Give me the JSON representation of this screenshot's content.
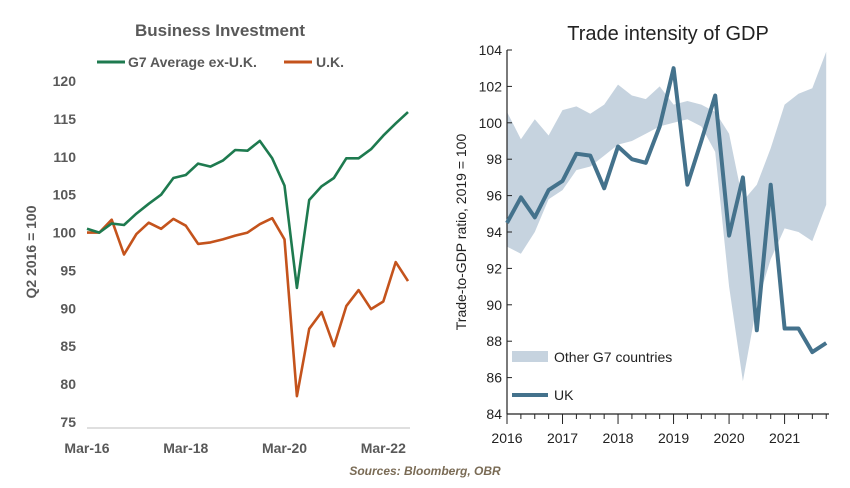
{
  "chart_data": [
    {
      "type": "line",
      "title": "Business Investment",
      "ylabel": "Q2 2016 = 100",
      "xlabel": "",
      "ylim": [
        75,
        120
      ],
      "yticks": [
        75,
        80,
        85,
        90,
        95,
        100,
        105,
        110,
        115,
        120
      ],
      "xticks": [
        "Mar-16",
        "Mar-18",
        "Mar-20",
        "Mar-22"
      ],
      "series": [
        {
          "name": "G7 Average ex-U.K.",
          "color": "#1e7a4f",
          "values": [
            100.5,
            100.0,
            101.2,
            101.0,
            102.5,
            103.8,
            105.0,
            107.2,
            107.6,
            109.1,
            108.7,
            109.5,
            110.9,
            110.8,
            112.1,
            109.8,
            106.2,
            92.7,
            104.3,
            106.1,
            107.2,
            109.8,
            109.8,
            111.0,
            112.8,
            114.4,
            115.9
          ]
        },
        {
          "name": "U.K.",
          "color": "#c4531c",
          "values": [
            100.0,
            100.0,
            101.7,
            97.1,
            99.8,
            101.3,
            100.5,
            101.8,
            100.9,
            98.5,
            98.7,
            99.1,
            99.6,
            100.0,
            101.1,
            101.9,
            99.1,
            78.4,
            87.3,
            89.5,
            85.0,
            90.3,
            92.4,
            89.9,
            90.9,
            96.1,
            93.6
          ]
        }
      ]
    },
    {
      "type": "area",
      "title": "Trade intensity of GDP",
      "ylabel": "Trade-to-GDP ratio, 2019 = 100",
      "xlabel": "",
      "ylim": [
        84,
        104
      ],
      "yticks": [
        84,
        86,
        88,
        90,
        92,
        94,
        96,
        98,
        100,
        102,
        104
      ],
      "xticks": [
        "2016",
        "2017",
        "2018",
        "2019",
        "2020",
        "2021"
      ],
      "x": [
        2016.0,
        2016.25,
        2016.5,
        2016.75,
        2017.0,
        2017.25,
        2017.5,
        2017.75,
        2018.0,
        2018.25,
        2018.5,
        2018.75,
        2019.0,
        2019.25,
        2019.5,
        2019.75,
        2020.0,
        2020.25,
        2020.5,
        2020.75,
        2021.0,
        2021.25,
        2021.5,
        2021.75
      ],
      "band": {
        "name": "Other G7 countries",
        "color": "#c6d3df",
        "low": [
          93.2,
          92.8,
          94.0,
          95.8,
          96.3,
          97.4,
          97.6,
          98.2,
          98.8,
          99.0,
          99.4,
          99.8,
          100.0,
          100.2,
          99.8,
          98.4,
          91.0,
          85.8,
          90.0,
          92.5,
          94.2,
          94.0,
          93.5,
          95.5
        ],
        "high": [
          100.6,
          99.1,
          100.2,
          99.3,
          100.7,
          100.9,
          100.5,
          101.0,
          102.1,
          101.5,
          101.3,
          102.0,
          101.0,
          101.2,
          101.0,
          100.6,
          99.4,
          95.7,
          96.6,
          98.6,
          101.0,
          101.6,
          101.9,
          103.9
        ]
      },
      "series": [
        {
          "name": "UK",
          "color": "#44728c",
          "values": [
            94.5,
            95.9,
            94.8,
            96.3,
            96.8,
            98.3,
            98.2,
            96.4,
            98.7,
            98.0,
            97.8,
            99.8,
            103.0,
            96.6,
            99.0,
            101.5,
            93.8,
            97.0,
            88.6,
            96.6,
            88.7,
            88.7,
            87.4,
            87.9
          ]
        }
      ]
    }
  ],
  "source": "Sources: Bloomberg, OBR"
}
